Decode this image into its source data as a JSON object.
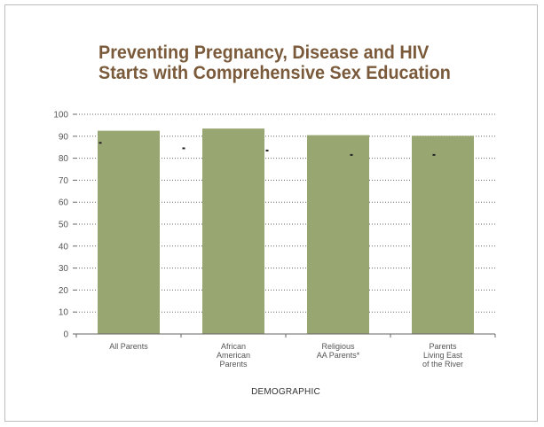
{
  "chart_data": {
    "type": "bar",
    "title_lines": [
      "Preventing Pregnancy, Disease and HIV",
      "Starts with Comprehensive Sex Education"
    ],
    "xlabel": "DEMOGRAPHIC",
    "ylabel": "",
    "categories": [
      [
        "All Parents"
      ],
      [
        "African",
        "American",
        "Parents"
      ],
      [
        "Religious",
        "AA Parents*"
      ],
      [
        "Parents",
        "Living East",
        "of the River"
      ]
    ],
    "values": [
      92.5,
      93.5,
      90.5,
      90.2
    ],
    "markers": [
      87,
      84.5,
      83.5,
      81.5,
      81.5
    ],
    "ylim": [
      0,
      100
    ],
    "yticks": [
      0,
      10,
      20,
      30,
      40,
      50,
      60,
      70,
      80,
      90,
      100
    ],
    "grid": true,
    "bar_color": "#98a672",
    "title_color": "#7a5a3a"
  }
}
